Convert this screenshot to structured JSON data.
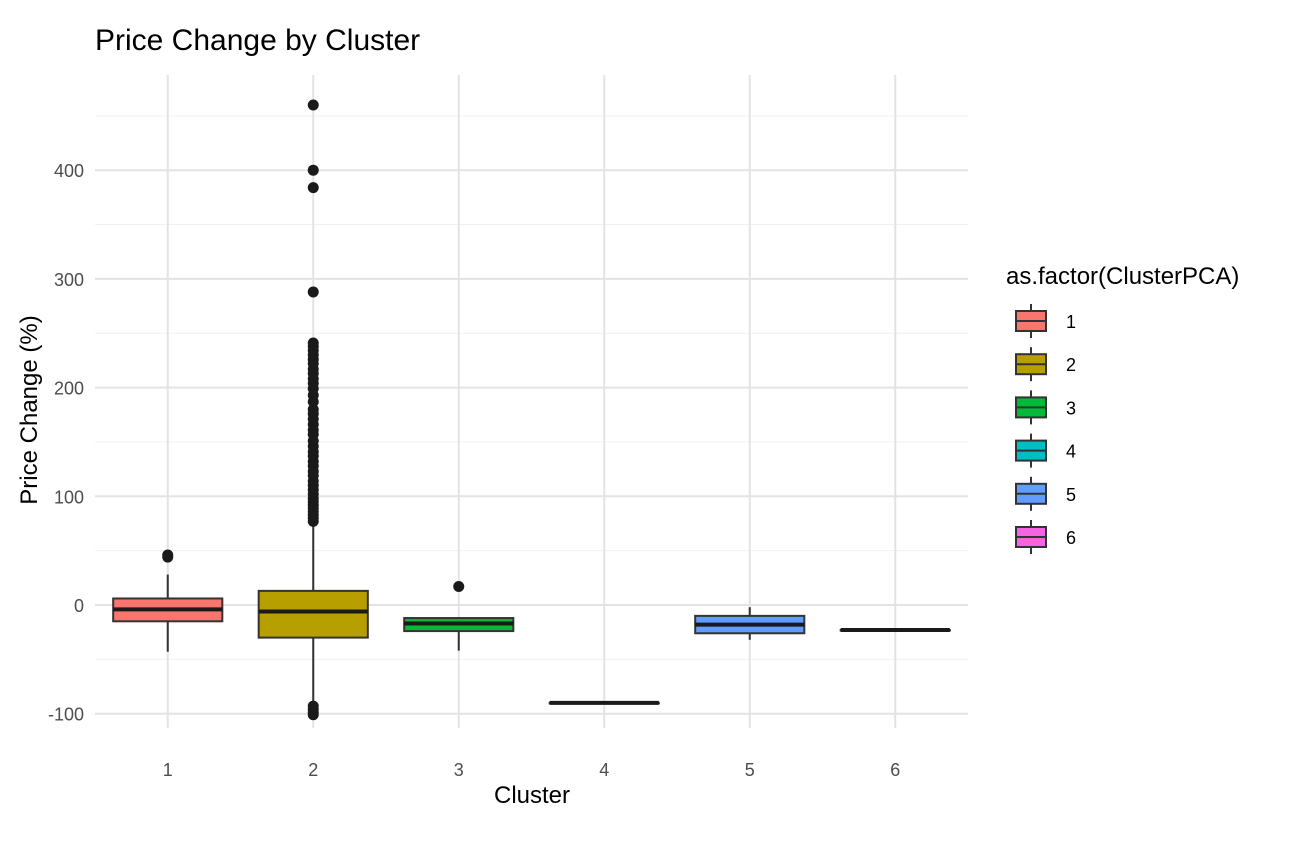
{
  "chart_data": {
    "type": "boxplot",
    "title": "Price Change by Cluster",
    "xlabel": "Cluster",
    "ylabel": "Price Change (%)",
    "categories": [
      "1",
      "2",
      "3",
      "4",
      "5",
      "6"
    ],
    "ylim": [
      -108,
      475
    ],
    "yticks": [
      -100,
      0,
      100,
      200,
      300,
      400
    ],
    "grid": true,
    "legend": {
      "title": "as.factor(ClusterPCA)",
      "position": "right",
      "entries": [
        "1",
        "2",
        "3",
        "4",
        "5",
        "6"
      ]
    },
    "colors": [
      "#F8766D",
      "#B79F00",
      "#00BA38",
      "#00BFC4",
      "#619CFF",
      "#F564E3"
    ],
    "series": [
      {
        "name": "1",
        "min": -43,
        "q1": -15,
        "median": -4,
        "q3": 6,
        "max": 28,
        "outliers": [
          44,
          46
        ]
      },
      {
        "name": "2",
        "min": -92,
        "q1": -30,
        "median": -6,
        "q3": 13,
        "max": 74,
        "outliers": [
          460,
          400,
          384,
          288,
          241,
          238,
          234,
          230,
          226,
          222,
          217,
          213,
          208,
          204,
          199,
          193,
          187,
          180,
          176,
          171,
          166,
          161,
          157,
          151,
          146,
          141,
          137,
          132,
          128,
          123,
          119,
          114,
          110,
          106,
          102,
          98,
          95,
          92,
          89,
          86,
          83,
          80,
          77,
          -93,
          -96,
          -99,
          -101
        ]
      },
      {
        "name": "3",
        "min": -42,
        "q1": -24,
        "median": -17,
        "q3": -12,
        "max": -12,
        "outliers": [
          17
        ]
      },
      {
        "name": "4",
        "min": -90,
        "q1": -90,
        "median": -90,
        "q3": -90,
        "max": -90,
        "outliers": []
      },
      {
        "name": "5",
        "min": -32,
        "q1": -26,
        "median": -18,
        "q3": -10,
        "max": -2,
        "outliers": []
      },
      {
        "name": "6",
        "min": -23,
        "q1": -23,
        "median": -23,
        "q3": -23,
        "max": -23,
        "outliers": []
      }
    ]
  }
}
